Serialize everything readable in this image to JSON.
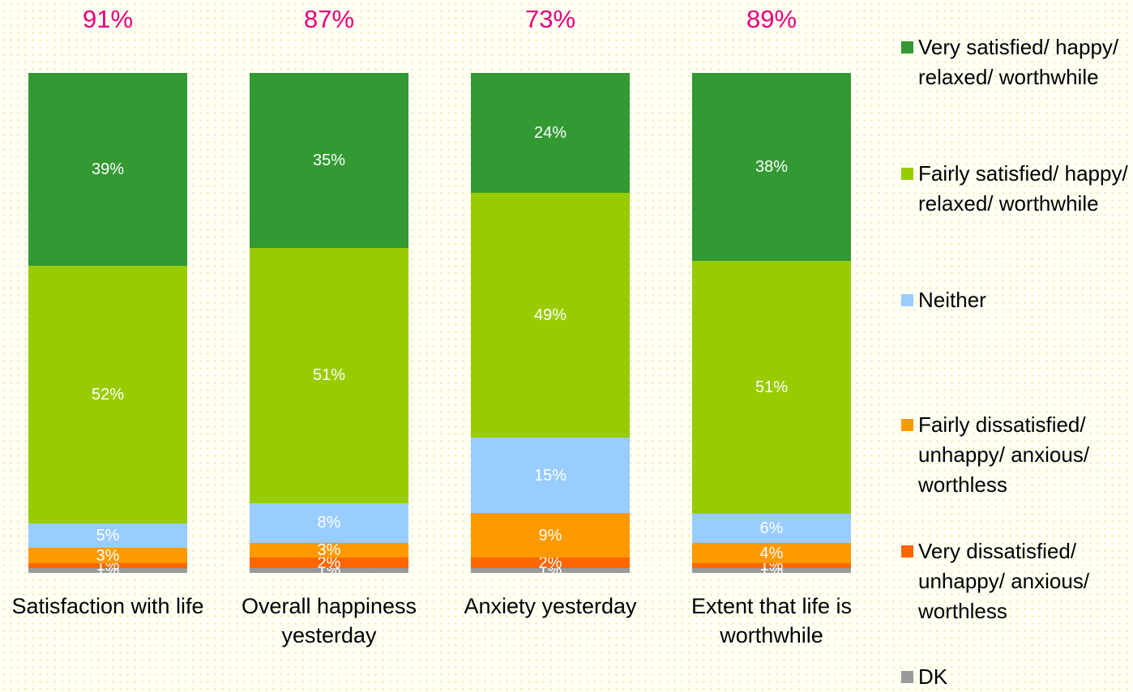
{
  "chart_data": {
    "type": "stacked-bar",
    "categories": [
      "Satisfaction with life",
      "Overall happiness yesterday",
      "Anxiety yesterday",
      "Extent that life is worthwhile"
    ],
    "annotations": [
      "91%",
      "87%",
      "73%",
      "89%"
    ],
    "series": [
      {
        "name": "Very satisfied/ happy/ relaxed/ worthwhile",
        "color": "#339933",
        "values": [
          39,
          35,
          24,
          38
        ],
        "value_labels": [
          "39%",
          "35%",
          "24%",
          "38%"
        ]
      },
      {
        "name": "Fairly satisfied/ happy/ relaxed/ worthwhile",
        "color": "#99cc00",
        "values": [
          52,
          51,
          49,
          51
        ],
        "value_labels": [
          "52%",
          "51%",
          "49%",
          "51%"
        ]
      },
      {
        "name": "Neither",
        "color": "#99ccff",
        "values": [
          5,
          8,
          15,
          6
        ],
        "value_labels": [
          "5%",
          "8%",
          "15%",
          "6%"
        ]
      },
      {
        "name": "Fairly dissatisfied/ unhappy/ anxious/ worthless",
        "color": "#ff9900",
        "values": [
          3,
          3,
          9,
          4
        ],
        "value_labels": [
          "3%",
          "3%",
          "9%",
          "4%"
        ]
      },
      {
        "name": "Very dissatisfied/ unhappy/ anxious/ worthless",
        "color": "#ff6600",
        "values": [
          1,
          2,
          2,
          1
        ],
        "value_labels": [
          "1%",
          "2%",
          "2%",
          "1%"
        ]
      },
      {
        "name": "DK",
        "color": "#999999",
        "values": [
          1,
          1,
          1,
          1
        ],
        "value_labels": [
          "1%",
          "1%",
          "1%",
          "1%"
        ]
      }
    ]
  }
}
